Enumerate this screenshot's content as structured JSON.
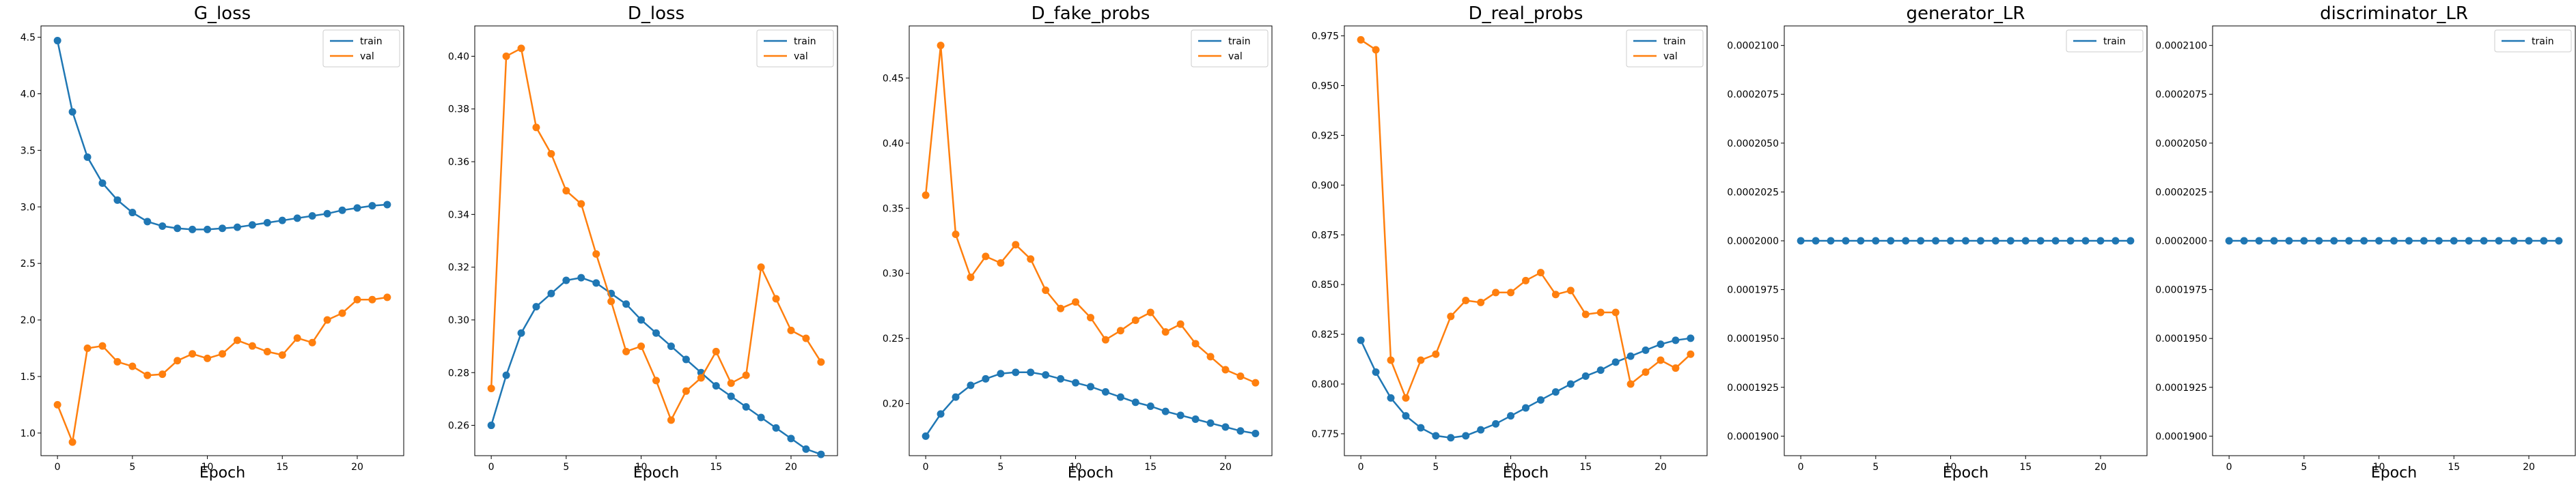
{
  "chart_data": [
    {
      "type": "line",
      "title": "G_loss",
      "xlabel": "Epoch",
      "ylabel": "",
      "xlim": [
        -1.1,
        23.1
      ],
      "ylim": [
        0.8,
        4.6
      ],
      "xticks": [
        0,
        5,
        10,
        15,
        20
      ],
      "yticks": [
        1.0,
        1.5,
        2.0,
        2.5,
        3.0,
        3.5,
        4.0,
        4.5
      ],
      "ytick_labels": [
        "1.0",
        "1.5",
        "2.0",
        "2.5",
        "3.0",
        "3.5",
        "4.0",
        "4.5"
      ],
      "legend": "top-right",
      "grid": false,
      "x": [
        0,
        1,
        2,
        3,
        4,
        5,
        6,
        7,
        8,
        9,
        10,
        11,
        12,
        13,
        14,
        15,
        16,
        17,
        18,
        19,
        20,
        21,
        22
      ],
      "series": [
        {
          "name": "train",
          "color": "#1f77b4",
          "values": [
            4.47,
            3.84,
            3.44,
            3.21,
            3.06,
            2.95,
            2.87,
            2.83,
            2.81,
            2.8,
            2.8,
            2.81,
            2.82,
            2.84,
            2.86,
            2.88,
            2.9,
            2.92,
            2.94,
            2.97,
            2.99,
            3.01,
            3.02
          ]
        },
        {
          "name": "val",
          "color": "#ff7f0e",
          "values": [
            1.25,
            0.92,
            1.75,
            1.77,
            1.63,
            1.59,
            1.51,
            1.52,
            1.64,
            1.7,
            1.66,
            1.7,
            1.82,
            1.77,
            1.72,
            1.69,
            1.84,
            1.8,
            2.0,
            2.06,
            2.18,
            2.18,
            2.2
          ]
        }
      ]
    },
    {
      "type": "line",
      "title": "D_loss",
      "xlabel": "Epoch",
      "ylabel": "",
      "xlim": [
        -1.1,
        23.1
      ],
      "ylim": [
        0.2485,
        0.4115
      ],
      "xticks": [
        0,
        5,
        10,
        15,
        20
      ],
      "yticks": [
        0.26,
        0.28,
        0.3,
        0.32,
        0.34,
        0.36,
        0.38,
        0.4
      ],
      "ytick_labels": [
        "0.26",
        "0.28",
        "0.30",
        "0.32",
        "0.34",
        "0.36",
        "0.38",
        "0.40"
      ],
      "legend": "top-right",
      "grid": false,
      "x": [
        0,
        1,
        2,
        3,
        4,
        5,
        6,
        7,
        8,
        9,
        10,
        11,
        12,
        13,
        14,
        15,
        16,
        17,
        18,
        19,
        20,
        21,
        22
      ],
      "series": [
        {
          "name": "train",
          "color": "#1f77b4",
          "values": [
            0.26,
            0.279,
            0.295,
            0.305,
            0.31,
            0.315,
            0.316,
            0.314,
            0.31,
            0.306,
            0.3,
            0.295,
            0.29,
            0.285,
            0.28,
            0.275,
            0.271,
            0.267,
            0.263,
            0.259,
            0.255,
            0.251,
            0.249
          ]
        },
        {
          "name": "val",
          "color": "#ff7f0e",
          "values": [
            0.274,
            0.4,
            0.403,
            0.373,
            0.363,
            0.349,
            0.344,
            0.325,
            0.307,
            0.288,
            0.29,
            0.277,
            0.262,
            0.273,
            0.278,
            0.288,
            0.276,
            0.279,
            0.32,
            0.308,
            0.296,
            0.293,
            0.284
          ]
        }
      ]
    },
    {
      "type": "line",
      "title": "D_fake_probs",
      "xlabel": "Epoch",
      "ylabel": "",
      "xlim": [
        -1.1,
        23.1
      ],
      "ylim": [
        0.16,
        0.49
      ],
      "xticks": [
        0,
        5,
        10,
        15,
        20
      ],
      "yticks": [
        0.2,
        0.25,
        0.3,
        0.35,
        0.4,
        0.45
      ],
      "ytick_labels": [
        "0.20",
        "0.25",
        "0.30",
        "0.35",
        "0.40",
        "0.45"
      ],
      "legend": "top-right",
      "grid": false,
      "x": [
        0,
        1,
        2,
        3,
        4,
        5,
        6,
        7,
        8,
        9,
        10,
        11,
        12,
        13,
        14,
        15,
        16,
        17,
        18,
        19,
        20,
        21,
        22
      ],
      "series": [
        {
          "name": "train",
          "color": "#1f77b4",
          "values": [
            0.175,
            0.192,
            0.205,
            0.214,
            0.219,
            0.223,
            0.224,
            0.224,
            0.222,
            0.219,
            0.216,
            0.213,
            0.209,
            0.205,
            0.201,
            0.198,
            0.194,
            0.191,
            0.188,
            0.185,
            0.182,
            0.179,
            0.177
          ]
        },
        {
          "name": "val",
          "color": "#ff7f0e",
          "values": [
            0.36,
            0.475,
            0.33,
            0.297,
            0.313,
            0.308,
            0.322,
            0.311,
            0.287,
            0.273,
            0.278,
            0.266,
            0.249,
            0.256,
            0.264,
            0.27,
            0.255,
            0.261,
            0.246,
            0.236,
            0.226,
            0.221,
            0.216
          ]
        }
      ]
    },
    {
      "type": "line",
      "title": "D_real_probs",
      "xlabel": "Epoch",
      "ylabel": "",
      "xlim": [
        -1.1,
        23.1
      ],
      "ylim": [
        0.764,
        0.98
      ],
      "xticks": [
        0,
        5,
        10,
        15,
        20
      ],
      "yticks": [
        0.775,
        0.8,
        0.825,
        0.85,
        0.875,
        0.9,
        0.925,
        0.95,
        0.975
      ],
      "ytick_labels": [
        "0.775",
        "0.800",
        "0.825",
        "0.850",
        "0.875",
        "0.900",
        "0.925",
        "0.950",
        "0.975"
      ],
      "legend": "top-right",
      "grid": false,
      "x": [
        0,
        1,
        2,
        3,
        4,
        5,
        6,
        7,
        8,
        9,
        10,
        11,
        12,
        13,
        14,
        15,
        16,
        17,
        18,
        19,
        20,
        21,
        22
      ],
      "series": [
        {
          "name": "train",
          "color": "#1f77b4",
          "values": [
            0.822,
            0.806,
            0.793,
            0.784,
            0.778,
            0.774,
            0.773,
            0.774,
            0.777,
            0.78,
            0.784,
            0.788,
            0.792,
            0.796,
            0.8,
            0.804,
            0.807,
            0.811,
            0.814,
            0.817,
            0.82,
            0.822,
            0.823
          ]
        },
        {
          "name": "val",
          "color": "#ff7f0e",
          "values": [
            0.973,
            0.968,
            0.812,
            0.793,
            0.812,
            0.815,
            0.834,
            0.842,
            0.841,
            0.846,
            0.846,
            0.852,
            0.856,
            0.845,
            0.847,
            0.835,
            0.836,
            0.836,
            0.8,
            0.806,
            0.812,
            0.808,
            0.815
          ]
        }
      ]
    },
    {
      "type": "line",
      "title": "generator_LR",
      "xlabel": "Epoch",
      "ylabel": "",
      "xlim": [
        -1.1,
        23.1
      ],
      "ylim": [
        0.000189,
        0.000211
      ],
      "xticks": [
        0,
        5,
        10,
        15,
        20
      ],
      "yticks": [
        0.00019,
        0.0001925,
        0.000195,
        0.0001975,
        0.0002,
        0.0002025,
        0.000205,
        0.0002075,
        0.00021
      ],
      "ytick_labels": [
        "0.0001900",
        "0.0001925",
        "0.0001950",
        "0.0001975",
        "0.0002000",
        "0.0002025",
        "0.0002050",
        "0.0002075",
        "0.0002100"
      ],
      "legend": "top-right",
      "grid": false,
      "x": [
        0,
        1,
        2,
        3,
        4,
        5,
        6,
        7,
        8,
        9,
        10,
        11,
        12,
        13,
        14,
        15,
        16,
        17,
        18,
        19,
        20,
        21,
        22
      ],
      "series": [
        {
          "name": "train",
          "color": "#1f77b4",
          "values": [
            0.0002,
            0.0002,
            0.0002,
            0.0002,
            0.0002,
            0.0002,
            0.0002,
            0.0002,
            0.0002,
            0.0002,
            0.0002,
            0.0002,
            0.0002,
            0.0002,
            0.0002,
            0.0002,
            0.0002,
            0.0002,
            0.0002,
            0.0002,
            0.0002,
            0.0002,
            0.0002
          ]
        }
      ]
    },
    {
      "type": "line",
      "title": "discriminator_LR",
      "xlabel": "Epoch",
      "ylabel": "",
      "xlim": [
        -1.1,
        23.1
      ],
      "ylim": [
        0.000189,
        0.000211
      ],
      "xticks": [
        0,
        5,
        10,
        15,
        20
      ],
      "yticks": [
        0.00019,
        0.0001925,
        0.000195,
        0.0001975,
        0.0002,
        0.0002025,
        0.000205,
        0.0002075,
        0.00021
      ],
      "ytick_labels": [
        "0.0001900",
        "0.0001925",
        "0.0001950",
        "0.0001975",
        "0.0002000",
        "0.0002025",
        "0.0002050",
        "0.0002075",
        "0.0002100"
      ],
      "legend": "top-right",
      "grid": false,
      "x": [
        0,
        1,
        2,
        3,
        4,
        5,
        6,
        7,
        8,
        9,
        10,
        11,
        12,
        13,
        14,
        15,
        16,
        17,
        18,
        19,
        20,
        21,
        22
      ],
      "series": [
        {
          "name": "train",
          "color": "#1f77b4",
          "values": [
            0.0002,
            0.0002,
            0.0002,
            0.0002,
            0.0002,
            0.0002,
            0.0002,
            0.0002,
            0.0002,
            0.0002,
            0.0002,
            0.0002,
            0.0002,
            0.0002,
            0.0002,
            0.0002,
            0.0002,
            0.0002,
            0.0002,
            0.0002,
            0.0002,
            0.0002,
            0.0002
          ]
        }
      ]
    }
  ]
}
